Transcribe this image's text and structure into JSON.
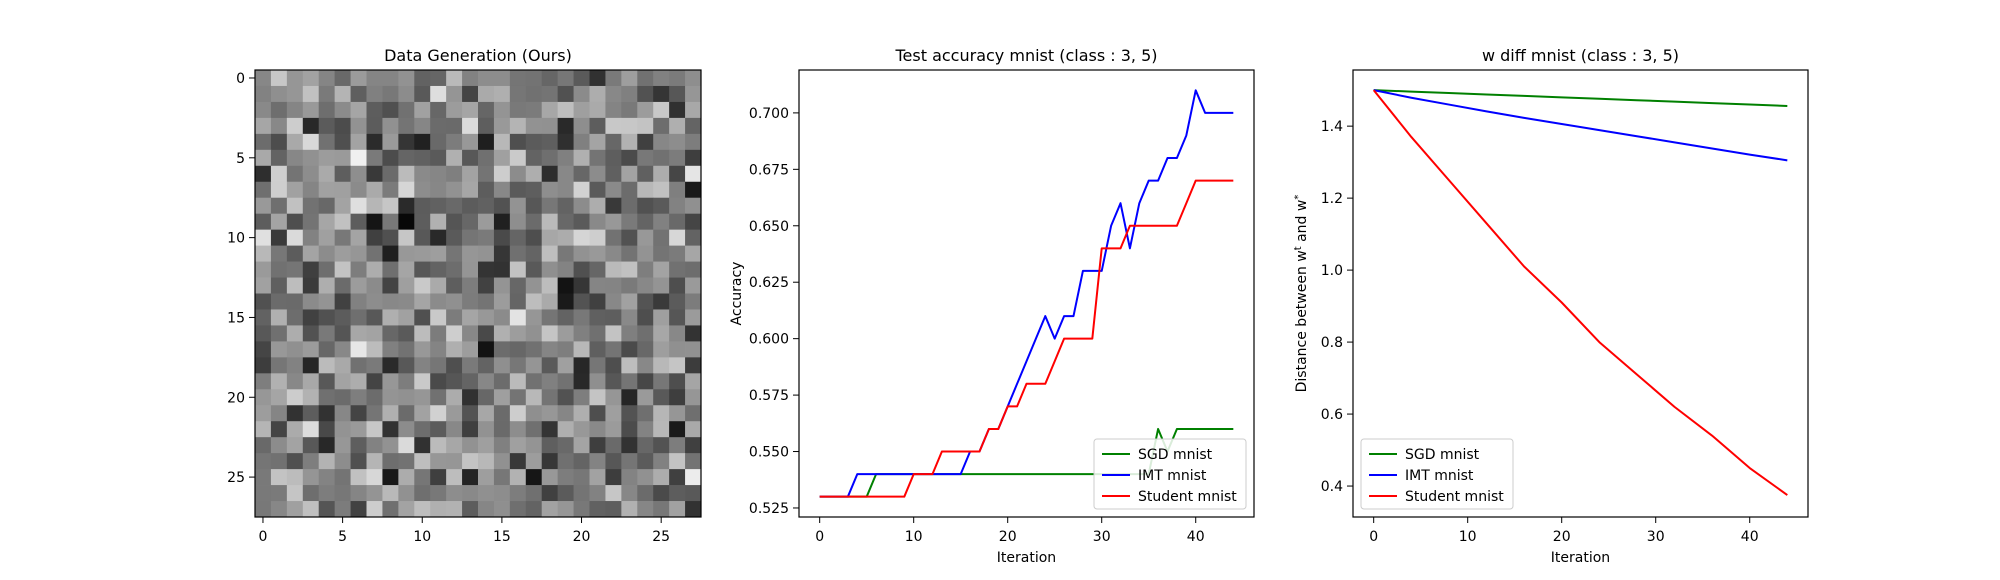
{
  "chart_data": [
    {
      "type": "heatmap",
      "title": "Data Generation (Ours)",
      "xlabel": "",
      "ylabel": "",
      "xlim": [
        -0.5,
        27.5
      ],
      "ylim": [
        27.5,
        -0.5
      ],
      "xticks": [
        0,
        5,
        10,
        15,
        20,
        25
      ],
      "yticks": [
        0,
        5,
        10,
        15,
        20,
        25
      ],
      "grid": false,
      "colormap": "gray",
      "rows": 28,
      "cols": 28,
      "pixel_values": "random grayscale noise (approximately uniform mid-gray, values not individually labeled)"
    },
    {
      "type": "line",
      "title": "Test accuracy mnist (class : 3, 5)",
      "xlabel": "Iteration",
      "ylabel": "Accuracy",
      "xlim": [
        -2.2,
        46.2
      ],
      "ylim": [
        0.521,
        0.719
      ],
      "xticks": [
        0,
        10,
        20,
        30,
        40
      ],
      "yticks": [
        0.525,
        0.55,
        0.575,
        0.6,
        0.625,
        0.65,
        0.675,
        0.7
      ],
      "ytick_labels": [
        "0.525",
        "0.550",
        "0.575",
        "0.600",
        "0.625",
        "0.650",
        "0.675",
        "0.700"
      ],
      "grid": false,
      "legend": "lower-right",
      "series": [
        {
          "name": "SGD mnist",
          "color": "#008000",
          "x": [
            0,
            1,
            2,
            3,
            4,
            5,
            6,
            7,
            8,
            9,
            10,
            11,
            12,
            13,
            14,
            15,
            16,
            17,
            18,
            19,
            20,
            21,
            22,
            23,
            24,
            25,
            26,
            27,
            28,
            29,
            30,
            31,
            32,
            33,
            34,
            35,
            36,
            37,
            38,
            39,
            40,
            41,
            42,
            43,
            44
          ],
          "y": [
            0.53,
            0.53,
            0.53,
            0.53,
            0.53,
            0.53,
            0.54,
            0.54,
            0.54,
            0.54,
            0.54,
            0.54,
            0.54,
            0.54,
            0.54,
            0.54,
            0.54,
            0.54,
            0.54,
            0.54,
            0.54,
            0.54,
            0.54,
            0.54,
            0.54,
            0.54,
            0.54,
            0.54,
            0.54,
            0.54,
            0.54,
            0.54,
            0.54,
            0.54,
            0.54,
            0.54,
            0.56,
            0.55,
            0.56,
            0.56,
            0.56,
            0.56,
            0.56,
            0.56,
            0.56
          ]
        },
        {
          "name": "IMT mnist",
          "color": "#0000ff",
          "x": [
            0,
            1,
            2,
            3,
            4,
            5,
            6,
            7,
            8,
            9,
            10,
            11,
            12,
            13,
            14,
            15,
            16,
            17,
            18,
            19,
            20,
            21,
            22,
            23,
            24,
            25,
            26,
            27,
            28,
            29,
            30,
            31,
            32,
            33,
            34,
            35,
            36,
            37,
            38,
            39,
            40,
            41,
            42,
            43,
            44
          ],
          "y": [
            0.53,
            0.53,
            0.53,
            0.53,
            0.54,
            0.54,
            0.54,
            0.54,
            0.54,
            0.54,
            0.54,
            0.54,
            0.54,
            0.54,
            0.54,
            0.54,
            0.55,
            0.55,
            0.56,
            0.56,
            0.57,
            0.58,
            0.59,
            0.6,
            0.61,
            0.6,
            0.61,
            0.61,
            0.63,
            0.63,
            0.63,
            0.65,
            0.66,
            0.64,
            0.66,
            0.67,
            0.67,
            0.68,
            0.68,
            0.69,
            0.71,
            0.7,
            0.7,
            0.7,
            0.7
          ]
        },
        {
          "name": "Student mnist",
          "color": "#ff0000",
          "x": [
            0,
            1,
            2,
            3,
            4,
            5,
            6,
            7,
            8,
            9,
            10,
            11,
            12,
            13,
            14,
            15,
            16,
            17,
            18,
            19,
            20,
            21,
            22,
            23,
            24,
            25,
            26,
            27,
            28,
            29,
            30,
            31,
            32,
            33,
            34,
            35,
            36,
            37,
            38,
            39,
            40,
            41,
            42,
            43,
            44
          ],
          "y": [
            0.53,
            0.53,
            0.53,
            0.53,
            0.53,
            0.53,
            0.53,
            0.53,
            0.53,
            0.53,
            0.54,
            0.54,
            0.54,
            0.55,
            0.55,
            0.55,
            0.55,
            0.55,
            0.56,
            0.56,
            0.57,
            0.57,
            0.58,
            0.58,
            0.58,
            0.59,
            0.6,
            0.6,
            0.6,
            0.6,
            0.64,
            0.64,
            0.64,
            0.65,
            0.65,
            0.65,
            0.65,
            0.65,
            0.65,
            0.66,
            0.67,
            0.67,
            0.67,
            0.67,
            0.67
          ]
        }
      ],
      "legend_entries": [
        "SGD mnist",
        "IMT mnist",
        "Student mnist"
      ]
    },
    {
      "type": "line",
      "title": "w diff mnist (class : 3, 5)",
      "xlabel": "Iteration",
      "ylabel": "Distance between w^t and w^*",
      "xlim": [
        -2.2,
        46.2
      ],
      "ylim": [
        0.314,
        1.556
      ],
      "xticks": [
        0,
        10,
        20,
        30,
        40
      ],
      "yticks": [
        0.4,
        0.6,
        0.8,
        1.0,
        1.2,
        1.4
      ],
      "ytick_labels": [
        "0.4",
        "0.6",
        "0.8",
        "1.0",
        "1.2",
        "1.4"
      ],
      "grid": false,
      "legend": "lower-left",
      "series": [
        {
          "name": "SGD mnist",
          "color": "#008000",
          "x": [
            0,
            4,
            8,
            12,
            16,
            20,
            24,
            28,
            32,
            36,
            40,
            44
          ],
          "y": [
            1.5,
            1.496,
            1.492,
            1.488,
            1.484,
            1.48,
            1.476,
            1.472,
            1.468,
            1.464,
            1.46,
            1.456
          ]
        },
        {
          "name": "IMT mnist",
          "color": "#0000ff",
          "x": [
            0,
            4,
            8,
            12,
            16,
            20,
            24,
            28,
            32,
            36,
            40,
            44
          ],
          "y": [
            1.5,
            1.479,
            1.46,
            1.441,
            1.423,
            1.406,
            1.389,
            1.372,
            1.355,
            1.338,
            1.321,
            1.305
          ]
        },
        {
          "name": "Student mnist",
          "color": "#ff0000",
          "x": [
            0,
            4,
            8,
            12,
            16,
            20,
            24,
            28,
            32,
            36,
            40,
            44
          ],
          "y": [
            1.5,
            1.37,
            1.25,
            1.13,
            1.01,
            0.91,
            0.8,
            0.71,
            0.62,
            0.54,
            0.45,
            0.375
          ]
        }
      ],
      "legend_entries": [
        "SGD mnist",
        "IMT mnist",
        "Student mnist"
      ]
    }
  ]
}
